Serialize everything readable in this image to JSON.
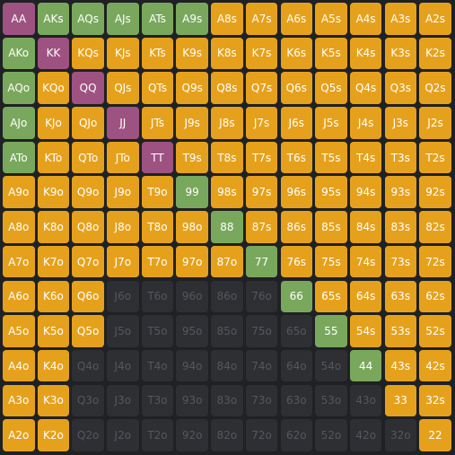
{
  "colors": {
    "raise": "#e6a11c",
    "call": "#79a85d",
    "allin": "#9e5282",
    "fold": "#2d2f33"
  },
  "grid": {
    "rows": [
      [
        {
          "label": "AA",
          "action": "allin"
        },
        {
          "label": "AKs",
          "action": "call"
        },
        {
          "label": "AQs",
          "action": "call"
        },
        {
          "label": "AJs",
          "action": "call"
        },
        {
          "label": "ATs",
          "action": "call"
        },
        {
          "label": "A9s",
          "action": "call"
        },
        {
          "label": "A8s",
          "action": "raise"
        },
        {
          "label": "A7s",
          "action": "raise"
        },
        {
          "label": "A6s",
          "action": "raise"
        },
        {
          "label": "A5s",
          "action": "raise"
        },
        {
          "label": "A4s",
          "action": "raise"
        },
        {
          "label": "A3s",
          "action": "raise"
        },
        {
          "label": "A2s",
          "action": "raise"
        }
      ],
      [
        {
          "label": "AKo",
          "action": "call"
        },
        {
          "label": "KK",
          "action": "allin"
        },
        {
          "label": "KQs",
          "action": "raise"
        },
        {
          "label": "KJs",
          "action": "raise"
        },
        {
          "label": "KTs",
          "action": "raise"
        },
        {
          "label": "K9s",
          "action": "raise"
        },
        {
          "label": "K8s",
          "action": "raise"
        },
        {
          "label": "K7s",
          "action": "raise"
        },
        {
          "label": "K6s",
          "action": "raise"
        },
        {
          "label": "K5s",
          "action": "raise"
        },
        {
          "label": "K4s",
          "action": "raise"
        },
        {
          "label": "K3s",
          "action": "raise"
        },
        {
          "label": "K2s",
          "action": "raise"
        }
      ],
      [
        {
          "label": "AQo",
          "action": "call"
        },
        {
          "label": "KQo",
          "action": "raise"
        },
        {
          "label": "QQ",
          "action": "allin"
        },
        {
          "label": "QJs",
          "action": "raise"
        },
        {
          "label": "QTs",
          "action": "raise"
        },
        {
          "label": "Q9s",
          "action": "raise"
        },
        {
          "label": "Q8s",
          "action": "raise"
        },
        {
          "label": "Q7s",
          "action": "raise"
        },
        {
          "label": "Q6s",
          "action": "raise"
        },
        {
          "label": "Q5s",
          "action": "raise"
        },
        {
          "label": "Q4s",
          "action": "raise"
        },
        {
          "label": "Q3s",
          "action": "raise"
        },
        {
          "label": "Q2s",
          "action": "raise"
        }
      ],
      [
        {
          "label": "AJo",
          "action": "call"
        },
        {
          "label": "KJo",
          "action": "raise"
        },
        {
          "label": "QJo",
          "action": "raise"
        },
        {
          "label": "JJ",
          "action": "allin"
        },
        {
          "label": "JTs",
          "action": "raise"
        },
        {
          "label": "J9s",
          "action": "raise"
        },
        {
          "label": "J8s",
          "action": "raise"
        },
        {
          "label": "J7s",
          "action": "raise"
        },
        {
          "label": "J6s",
          "action": "raise"
        },
        {
          "label": "J5s",
          "action": "raise"
        },
        {
          "label": "J4s",
          "action": "raise"
        },
        {
          "label": "J3s",
          "action": "raise"
        },
        {
          "label": "J2s",
          "action": "raise"
        }
      ],
      [
        {
          "label": "ATo",
          "action": "call"
        },
        {
          "label": "KTo",
          "action": "raise"
        },
        {
          "label": "QTo",
          "action": "raise"
        },
        {
          "label": "JTo",
          "action": "raise"
        },
        {
          "label": "TT",
          "action": "allin"
        },
        {
          "label": "T9s",
          "action": "raise"
        },
        {
          "label": "T8s",
          "action": "raise"
        },
        {
          "label": "T7s",
          "action": "raise"
        },
        {
          "label": "T6s",
          "action": "raise"
        },
        {
          "label": "T5s",
          "action": "raise"
        },
        {
          "label": "T4s",
          "action": "raise"
        },
        {
          "label": "T3s",
          "action": "raise"
        },
        {
          "label": "T2s",
          "action": "raise"
        }
      ],
      [
        {
          "label": "A9o",
          "action": "raise"
        },
        {
          "label": "K9o",
          "action": "raise"
        },
        {
          "label": "Q9o",
          "action": "raise"
        },
        {
          "label": "J9o",
          "action": "raise"
        },
        {
          "label": "T9o",
          "action": "raise"
        },
        {
          "label": "99",
          "action": "call"
        },
        {
          "label": "98s",
          "action": "raise"
        },
        {
          "label": "97s",
          "action": "raise"
        },
        {
          "label": "96s",
          "action": "raise"
        },
        {
          "label": "95s",
          "action": "raise"
        },
        {
          "label": "94s",
          "action": "raise"
        },
        {
          "label": "93s",
          "action": "raise"
        },
        {
          "label": "92s",
          "action": "raise"
        }
      ],
      [
        {
          "label": "A8o",
          "action": "raise"
        },
        {
          "label": "K8o",
          "action": "raise"
        },
        {
          "label": "Q8o",
          "action": "raise"
        },
        {
          "label": "J8o",
          "action": "raise"
        },
        {
          "label": "T8o",
          "action": "raise"
        },
        {
          "label": "98o",
          "action": "raise"
        },
        {
          "label": "88",
          "action": "call"
        },
        {
          "label": "87s",
          "action": "raise"
        },
        {
          "label": "86s",
          "action": "raise"
        },
        {
          "label": "85s",
          "action": "raise"
        },
        {
          "label": "84s",
          "action": "raise"
        },
        {
          "label": "83s",
          "action": "raise"
        },
        {
          "label": "82s",
          "action": "raise"
        }
      ],
      [
        {
          "label": "A7o",
          "action": "raise"
        },
        {
          "label": "K7o",
          "action": "raise"
        },
        {
          "label": "Q7o",
          "action": "raise"
        },
        {
          "label": "J7o",
          "action": "raise"
        },
        {
          "label": "T7o",
          "action": "raise"
        },
        {
          "label": "97o",
          "action": "raise"
        },
        {
          "label": "87o",
          "action": "raise"
        },
        {
          "label": "77",
          "action": "call"
        },
        {
          "label": "76s",
          "action": "raise"
        },
        {
          "label": "75s",
          "action": "raise"
        },
        {
          "label": "74s",
          "action": "raise"
        },
        {
          "label": "73s",
          "action": "raise"
        },
        {
          "label": "72s",
          "action": "raise"
        }
      ],
      [
        {
          "label": "A6o",
          "action": "raise"
        },
        {
          "label": "K6o",
          "action": "raise"
        },
        {
          "label": "Q6o",
          "action": "raise"
        },
        {
          "label": "J6o",
          "action": "fold"
        },
        {
          "label": "T6o",
          "action": "fold"
        },
        {
          "label": "96o",
          "action": "fold"
        },
        {
          "label": "86o",
          "action": "fold"
        },
        {
          "label": "76o",
          "action": "fold"
        },
        {
          "label": "66",
          "action": "call"
        },
        {
          "label": "65s",
          "action": "raise"
        },
        {
          "label": "64s",
          "action": "raise"
        },
        {
          "label": "63s",
          "action": "raise"
        },
        {
          "label": "62s",
          "action": "raise"
        }
      ],
      [
        {
          "label": "A5o",
          "action": "raise"
        },
        {
          "label": "K5o",
          "action": "raise"
        },
        {
          "label": "Q5o",
          "action": "raise"
        },
        {
          "label": "J5o",
          "action": "fold"
        },
        {
          "label": "T5o",
          "action": "fold"
        },
        {
          "label": "95o",
          "action": "fold"
        },
        {
          "label": "85o",
          "action": "fold"
        },
        {
          "label": "75o",
          "action": "fold"
        },
        {
          "label": "65o",
          "action": "fold"
        },
        {
          "label": "55",
          "action": "call"
        },
        {
          "label": "54s",
          "action": "raise"
        },
        {
          "label": "53s",
          "action": "raise"
        },
        {
          "label": "52s",
          "action": "raise"
        }
      ],
      [
        {
          "label": "A4o",
          "action": "raise"
        },
        {
          "label": "K4o",
          "action": "raise"
        },
        {
          "label": "Q4o",
          "action": "fold"
        },
        {
          "label": "J4o",
          "action": "fold"
        },
        {
          "label": "T4o",
          "action": "fold"
        },
        {
          "label": "94o",
          "action": "fold"
        },
        {
          "label": "84o",
          "action": "fold"
        },
        {
          "label": "74o",
          "action": "fold"
        },
        {
          "label": "64o",
          "action": "fold"
        },
        {
          "label": "54o",
          "action": "fold"
        },
        {
          "label": "44",
          "action": "call"
        },
        {
          "label": "43s",
          "action": "raise"
        },
        {
          "label": "42s",
          "action": "raise"
        }
      ],
      [
        {
          "label": "A3o",
          "action": "raise"
        },
        {
          "label": "K3o",
          "action": "raise"
        },
        {
          "label": "Q3o",
          "action": "fold"
        },
        {
          "label": "J3o",
          "action": "fold"
        },
        {
          "label": "T3o",
          "action": "fold"
        },
        {
          "label": "93o",
          "action": "fold"
        },
        {
          "label": "83o",
          "action": "fold"
        },
        {
          "label": "73o",
          "action": "fold"
        },
        {
          "label": "63o",
          "action": "fold"
        },
        {
          "label": "53o",
          "action": "fold"
        },
        {
          "label": "43o",
          "action": "fold"
        },
        {
          "label": "33",
          "action": "raise"
        },
        {
          "label": "32s",
          "action": "raise"
        }
      ],
      [
        {
          "label": "A2o",
          "action": "raise"
        },
        {
          "label": "K2o",
          "action": "raise"
        },
        {
          "label": "Q2o",
          "action": "fold"
        },
        {
          "label": "J2o",
          "action": "fold"
        },
        {
          "label": "T2o",
          "action": "fold"
        },
        {
          "label": "92o",
          "action": "fold"
        },
        {
          "label": "82o",
          "action": "fold"
        },
        {
          "label": "72o",
          "action": "fold"
        },
        {
          "label": "62o",
          "action": "fold"
        },
        {
          "label": "52o",
          "action": "fold"
        },
        {
          "label": "42o",
          "action": "fold"
        },
        {
          "label": "32o",
          "action": "fold"
        },
        {
          "label": "22",
          "action": "raise"
        }
      ]
    ]
  }
}
